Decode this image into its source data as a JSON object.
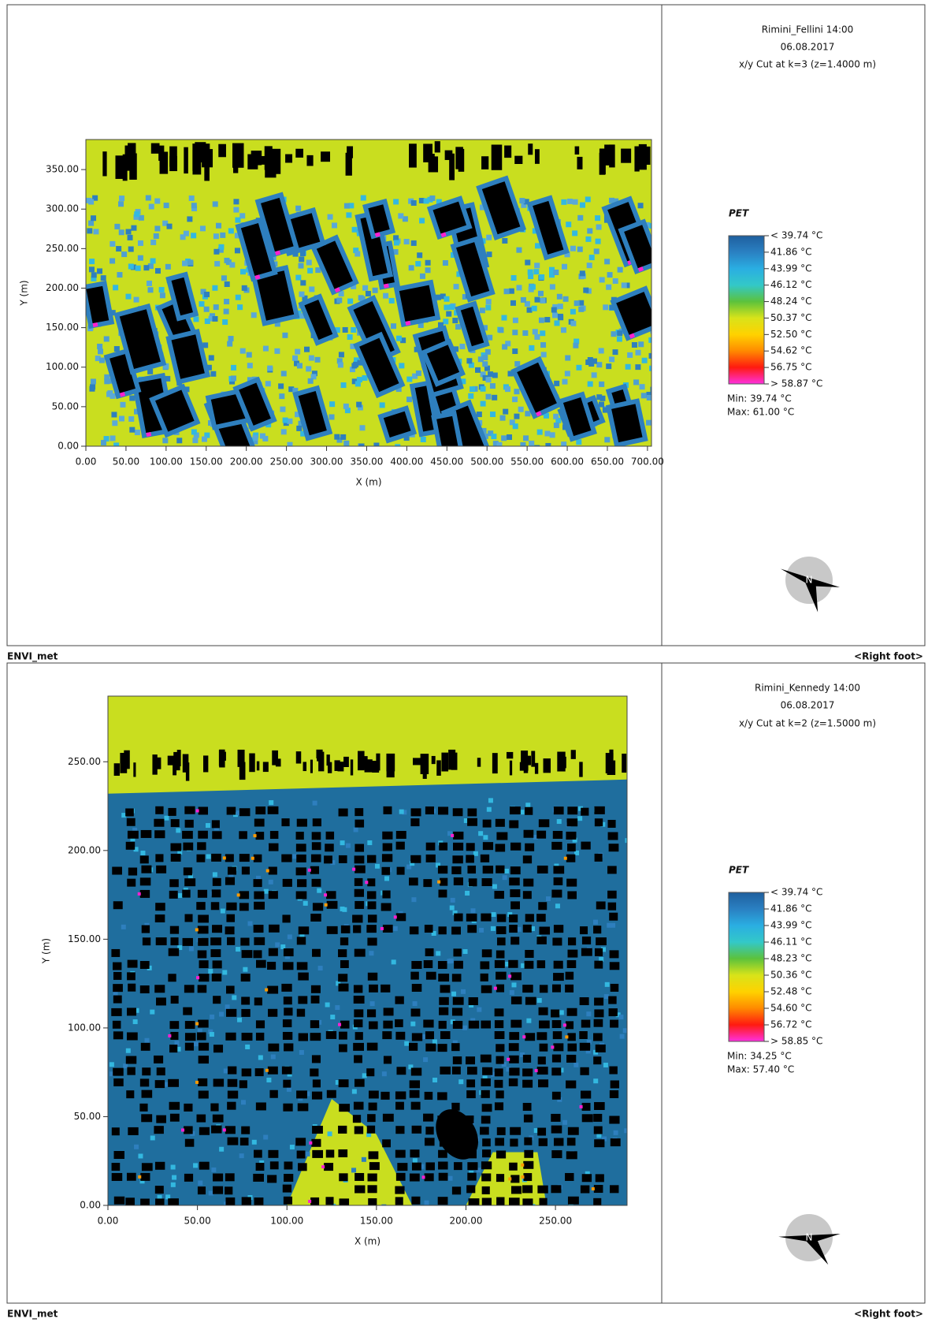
{
  "chart_data": [
    {
      "type": "heatmap",
      "title": "Rimini_Fellini 14:00",
      "date": "06.08.2017",
      "subtitle": "x/y Cut at k=3 (z=1.4000 m)",
      "x_label": "X (m)",
      "y_label": "Y (m)",
      "xlim": [
        0,
        705
      ],
      "ylim": [
        0,
        388
      ],
      "xticks": [
        {
          "value": 0,
          "label": "0.00"
        },
        {
          "value": 50,
          "label": "50.00"
        },
        {
          "value": 100,
          "label": "100.00"
        },
        {
          "value": 150,
          "label": "150.00"
        },
        {
          "value": 200,
          "label": "200.00"
        },
        {
          "value": 250,
          "label": "250.00"
        },
        {
          "value": 300,
          "label": "300.00"
        },
        {
          "value": 350,
          "label": "350.00"
        },
        {
          "value": 400,
          "label": "400.00"
        },
        {
          "value": 450,
          "label": "450.00"
        },
        {
          "value": 500,
          "label": "500.00"
        },
        {
          "value": 550,
          "label": "550.00"
        },
        {
          "value": 600,
          "label": "600.00"
        },
        {
          "value": 650,
          "label": "650.00"
        },
        {
          "value": 700,
          "label": "700.00"
        }
      ],
      "yticks": [
        {
          "value": 0,
          "label": "0.00"
        },
        {
          "value": 50,
          "label": "50.00"
        },
        {
          "value": 100,
          "label": "100.00"
        },
        {
          "value": 150,
          "label": "150.00"
        },
        {
          "value": 200,
          "label": "200.00"
        },
        {
          "value": 250,
          "label": "250.00"
        },
        {
          "value": 300,
          "label": "300.00"
        },
        {
          "value": 350,
          "label": "350.00"
        }
      ],
      "legend": {
        "title": "PET",
        "labels": [
          "< 39.74 °C",
          "41.86 °C",
          "43.99 °C",
          "46.12 °C",
          "48.24 °C",
          "50.37 °C",
          "52.50 °C",
          "54.62 °C",
          "56.75 °C",
          "> 58.87 °C"
        ],
        "colors": [
          "#1f5f9e",
          "#2a80c2",
          "#2aaee2",
          "#33c8c8",
          "#5cc23c",
          "#d8e31a",
          "#ffd200",
          "#ff8a00",
          "#ff1a10",
          "#ff30e0"
        ]
      },
      "min_label": "Min: 39.74 °C",
      "max_label": "Max: 61.00 °C",
      "north_label": "N"
    },
    {
      "type": "heatmap",
      "title": "Rimini_Kennedy 14:00",
      "date": "06.08.2017",
      "subtitle": "x/y Cut at k=2 (z=1.5000 m)",
      "x_label": "X (m)",
      "y_label": "Y (m)",
      "xlim": [
        0,
        290
      ],
      "ylim": [
        0,
        287
      ],
      "xticks": [
        {
          "value": 0,
          "label": "0.00"
        },
        {
          "value": 50,
          "label": "50.00"
        },
        {
          "value": 100,
          "label": "100.00"
        },
        {
          "value": 150,
          "label": "150.00"
        },
        {
          "value": 200,
          "label": "200.00"
        },
        {
          "value": 250,
          "label": "250.00"
        }
      ],
      "yticks": [
        {
          "value": 0,
          "label": "0.00"
        },
        {
          "value": 50,
          "label": "50.00"
        },
        {
          "value": 100,
          "label": "100.00"
        },
        {
          "value": 150,
          "label": "150.00"
        },
        {
          "value": 200,
          "label": "200.00"
        },
        {
          "value": 250,
          "label": "250.00"
        }
      ],
      "legend": {
        "title": "PET",
        "labels": [
          "< 39.74 °C",
          "41.86 °C",
          "43.99 °C",
          "46.11 °C",
          "48.23 °C",
          "50.36 °C",
          "52.48 °C",
          "54.60 °C",
          "56.72 °C",
          "> 58.85 °C"
        ],
        "colors": [
          "#1f5f9e",
          "#2a80c2",
          "#2aaee2",
          "#33c8c8",
          "#5cc23c",
          "#d8e31a",
          "#ffd200",
          "#ff8a00",
          "#ff1a10",
          "#ff30e0"
        ]
      },
      "min_label": "Min: 34.25 °C",
      "max_label": "Max: 57.40 °C",
      "north_label": "N"
    }
  ],
  "footers": [
    {
      "left": "ENVI_met",
      "right": "<Right foot>"
    },
    {
      "left": "ENVI_met",
      "right": "<Right foot>"
    }
  ]
}
